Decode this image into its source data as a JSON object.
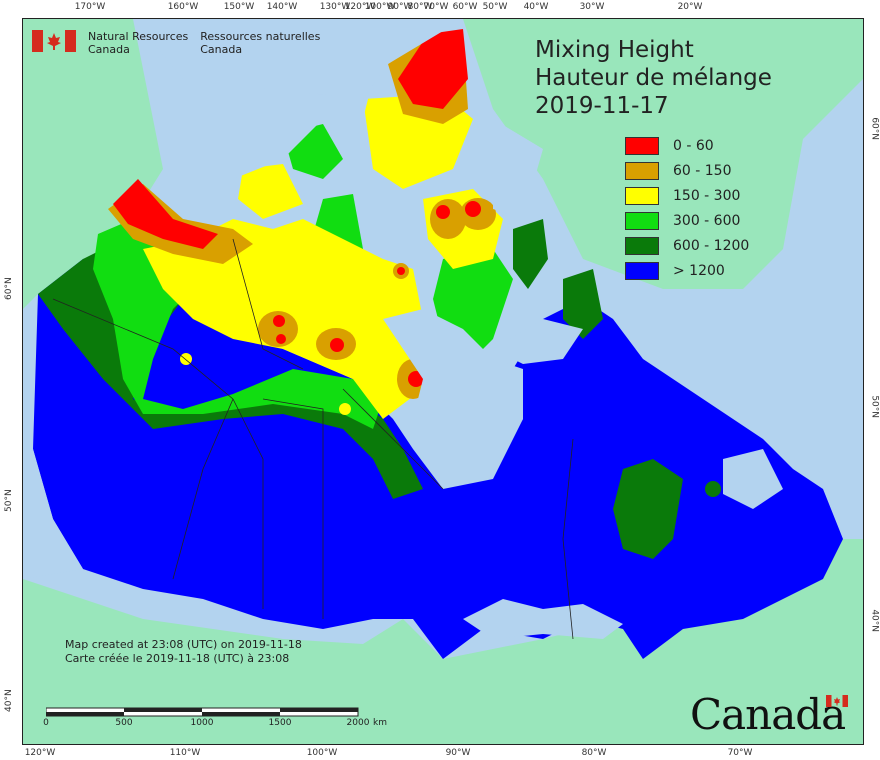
{
  "map": {
    "title_en": "Mixing Height",
    "title_fr": "Hauteur de mélange",
    "date": "2019-11-17",
    "legend": [
      {
        "label": "0 - 60",
        "color": "#ff0000"
      },
      {
        "label": "60 - 150",
        "color": "#d9a000"
      },
      {
        "label": "150 - 300",
        "color": "#ffff00"
      },
      {
        "label": "300 - 600",
        "color": "#11dd11"
      },
      {
        "label": "600 - 1200",
        "color": "#0a7a0a"
      },
      {
        "label": "> 1200",
        "color": "#0000ff"
      }
    ],
    "colors": {
      "water": "#b3d3ef",
      "land_outside": "#99e6bb"
    }
  },
  "agency": {
    "en_line1": "Natural Resources",
    "en_line2": "Canada",
    "fr_line1": "Ressources naturelles",
    "fr_line2": "Canada"
  },
  "footer": {
    "created_en": "Map created at 23:08 (UTC) on 2019-11-18",
    "created_fr": "Carte créée le 2019-11-18 (UTC) à 23:08",
    "scale_labels": [
      "0",
      "500",
      "1000",
      "1500",
      "2000",
      "km"
    ],
    "wordmark": "Canada"
  },
  "grid_labels": {
    "top": [
      "170°W",
      "160°W",
      "150°W",
      "140°W",
      "130°W",
      "120°W",
      "100°W",
      "90°W",
      "80°W",
      "70°W",
      "60°W",
      "50°W",
      "40°W",
      "30°W",
      "20°W"
    ],
    "bottom": [
      "120°W",
      "110°W",
      "100°W",
      "90°W",
      "80°W",
      "70°W"
    ],
    "left": [
      "60°N",
      "50°N",
      "40°N"
    ],
    "right": [
      "60°N",
      "50°N",
      "40°N"
    ]
  }
}
